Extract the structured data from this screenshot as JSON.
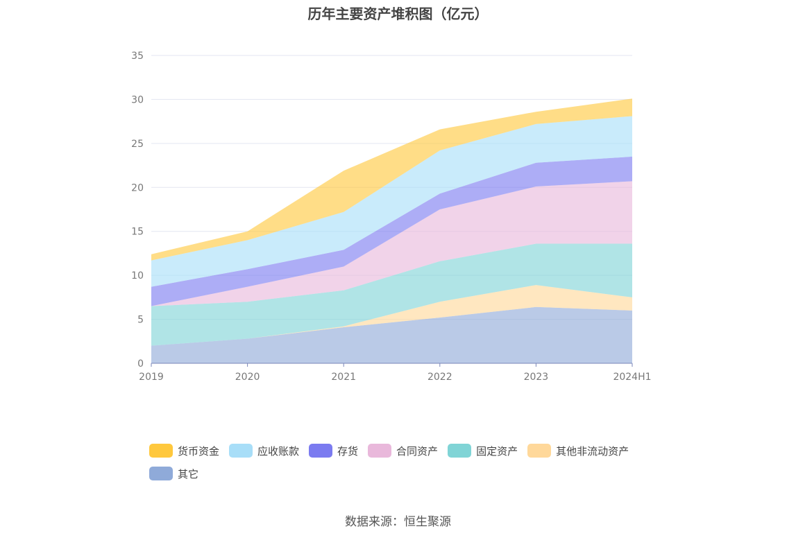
{
  "page": {
    "title": "历年主要资产堆积图（亿元）",
    "source": "数据来源：恒生聚源"
  },
  "chart_data": {
    "type": "area",
    "stacked": true,
    "title": "历年主要资产堆积图（亿元）",
    "xlabel": "",
    "ylabel": "",
    "categories": [
      "2019",
      "2020",
      "2021",
      "2022",
      "2023",
      "2024H1"
    ],
    "ylim": [
      0,
      35
    ],
    "yticks": [
      0,
      5,
      10,
      15,
      20,
      25,
      30,
      35
    ],
    "grid": true,
    "legend_position": "bottom",
    "series": [
      {
        "name": "其它",
        "color": "#8FAAD9",
        "values": [
          2.0,
          2.8,
          4.1,
          5.2,
          6.4,
          6.0
        ]
      },
      {
        "name": "其他非流动资产",
        "color": "#FFD89A",
        "values": [
          0.0,
          0.0,
          0.1,
          1.8,
          2.5,
          1.5
        ]
      },
      {
        "name": "固定资产",
        "color": "#80D4D6",
        "values": [
          4.5,
          4.2,
          4.1,
          4.6,
          4.7,
          6.1
        ]
      },
      {
        "name": "合同资产",
        "color": "#E9B8DB",
        "values": [
          0.0,
          1.7,
          2.7,
          5.9,
          6.5,
          7.1
        ]
      },
      {
        "name": "存货",
        "color": "#7B7BF0",
        "values": [
          2.2,
          2.0,
          1.9,
          1.8,
          2.7,
          2.8
        ]
      },
      {
        "name": "应收账款",
        "color": "#A8DEF8",
        "values": [
          3.0,
          3.3,
          4.3,
          4.9,
          4.4,
          4.6
        ]
      },
      {
        "name": "货币资金",
        "color": "#FFC83D",
        "values": [
          0.7,
          1.0,
          4.7,
          2.4,
          1.4,
          2.0
        ]
      }
    ],
    "legend_order": [
      "货币资金",
      "应收账款",
      "存货",
      "合同资产",
      "固定资产",
      "其他非流动资产",
      "其它"
    ]
  }
}
